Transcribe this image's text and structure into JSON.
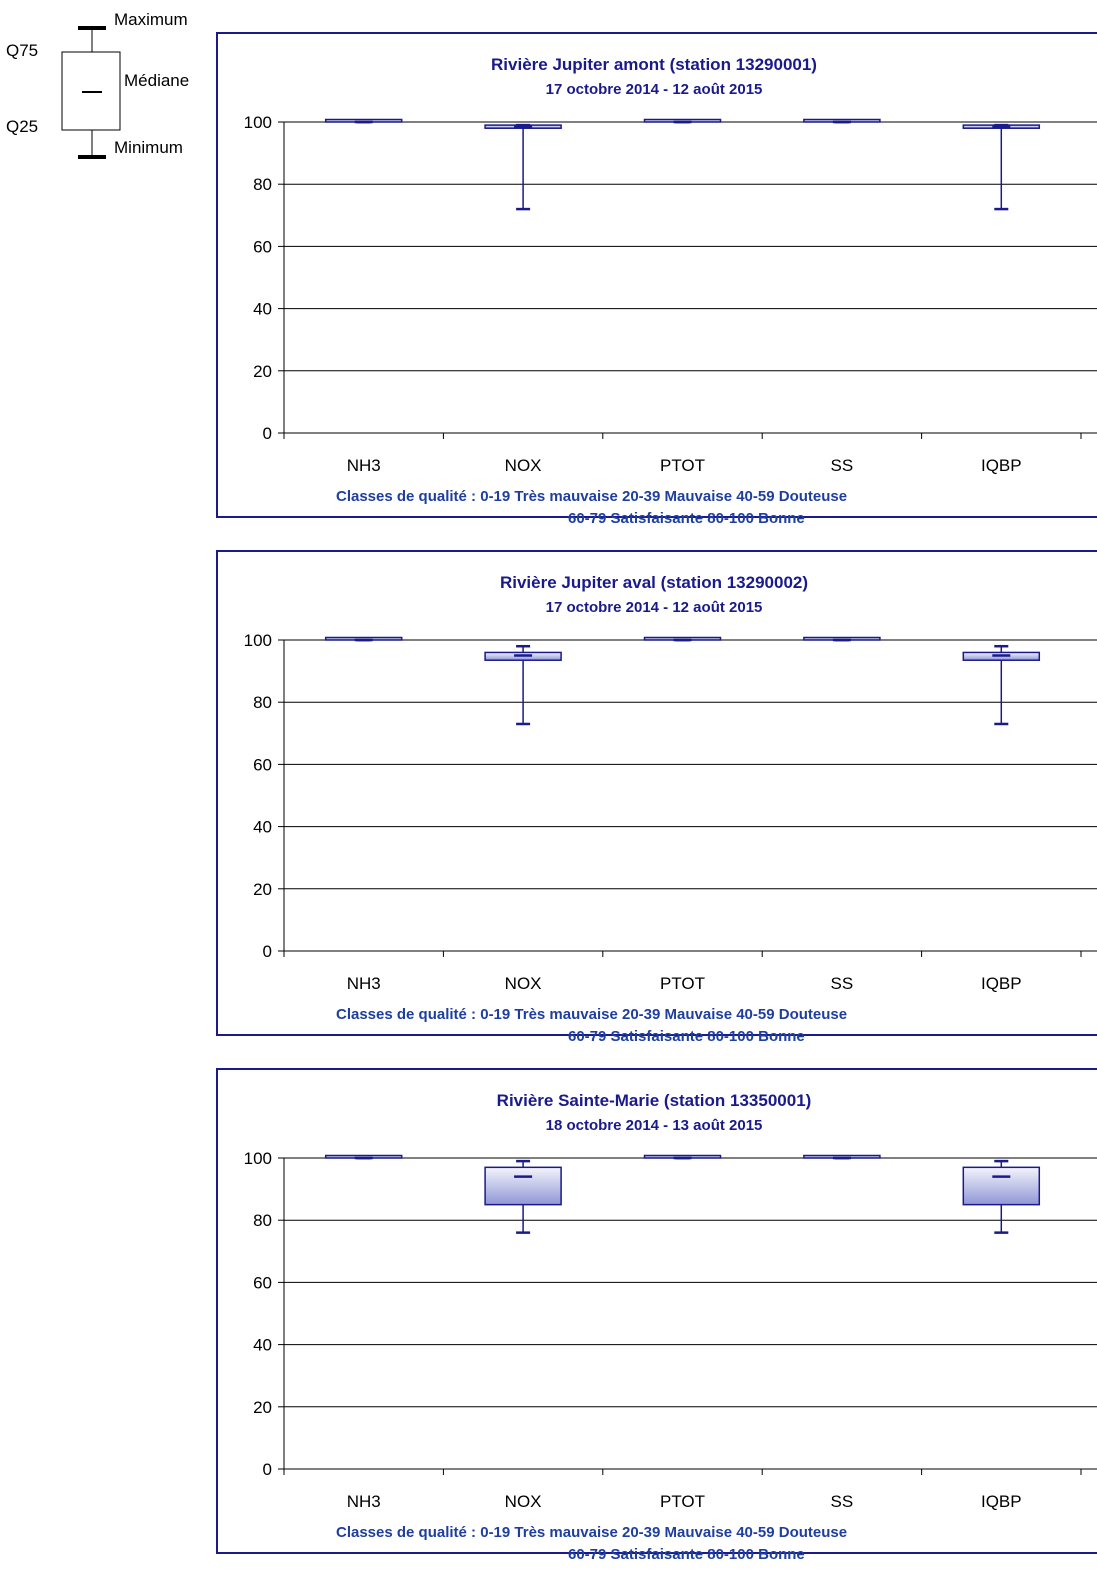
{
  "legend": {
    "maximum": "Maximum",
    "q75": "Q75",
    "median": "Médiane",
    "q25": "Q25",
    "minimum": "Minimum"
  },
  "colors": {
    "frame": "#1a1a8c",
    "title": "#1a1a8c",
    "quality_text": "#1f3fa0",
    "box_fill_top": "#f4f4fb",
    "box_fill_bottom": "#8f96d6",
    "whisker": "#1a1a8c"
  },
  "quality_classes": {
    "prefix": "Classes de qualité :",
    "c1": "0-19 Très mauvaise",
    "c2": "20-39 Mauvaise",
    "c3": "40-59 Douteuse",
    "c4": "60-79 Satisfaisante",
    "c5": "80-100 Bonne"
  },
  "chart_data": [
    {
      "type": "boxplot",
      "title": "Rivière Jupiter amont (station 13290001)",
      "subtitle": "17 octobre 2014 - 12 août 2015",
      "categories": [
        "NH3",
        "NOX",
        "PTOT",
        "SS",
        "IQBP"
      ],
      "ylim": [
        0,
        100
      ],
      "yticks": [
        0,
        20,
        40,
        60,
        80,
        100
      ],
      "grid": true,
      "boxes": [
        {
          "min": 100,
          "q25": 100,
          "median": 100,
          "q75": 100,
          "max": 100
        },
        {
          "min": 72,
          "q25": 98,
          "median": 98.5,
          "q75": 99,
          "max": 99
        },
        {
          "min": 100,
          "q25": 100,
          "median": 100,
          "q75": 100,
          "max": 100
        },
        {
          "min": 100,
          "q25": 100,
          "median": 100,
          "q75": 100,
          "max": 100
        },
        {
          "min": 72,
          "q25": 98,
          "median": 98.5,
          "q75": 99,
          "max": 99
        }
      ]
    },
    {
      "type": "boxplot",
      "title": "Rivière Jupiter aval (station 13290002)",
      "subtitle": "17 octobre 2014 - 12 août 2015",
      "categories": [
        "NH3",
        "NOX",
        "PTOT",
        "SS",
        "IQBP"
      ],
      "ylim": [
        0,
        100
      ],
      "yticks": [
        0,
        20,
        40,
        60,
        80,
        100
      ],
      "grid": true,
      "boxes": [
        {
          "min": 100,
          "q25": 100,
          "median": 100,
          "q75": 100,
          "max": 100
        },
        {
          "min": 73,
          "q25": 93.5,
          "median": 95,
          "q75": 96,
          "max": 98
        },
        {
          "min": 100,
          "q25": 100,
          "median": 100,
          "q75": 100,
          "max": 100
        },
        {
          "min": 100,
          "q25": 100,
          "median": 100,
          "q75": 100,
          "max": 100
        },
        {
          "min": 73,
          "q25": 93.5,
          "median": 95,
          "q75": 96,
          "max": 98
        }
      ]
    },
    {
      "type": "boxplot",
      "title": "Rivière Sainte-Marie (station 13350001)",
      "subtitle": "18 octobre 2014 - 13 août 2015",
      "categories": [
        "NH3",
        "NOX",
        "PTOT",
        "SS",
        "IQBP"
      ],
      "ylim": [
        0,
        100
      ],
      "yticks": [
        0,
        20,
        40,
        60,
        80,
        100
      ],
      "grid": true,
      "boxes": [
        {
          "min": 100,
          "q25": 100,
          "median": 100,
          "q75": 100,
          "max": 100
        },
        {
          "min": 76,
          "q25": 85,
          "median": 94,
          "q75": 97,
          "max": 99
        },
        {
          "min": 100,
          "q25": 100,
          "median": 100,
          "q75": 100,
          "max": 100
        },
        {
          "min": 100,
          "q25": 100,
          "median": 100,
          "q75": 100,
          "max": 100
        },
        {
          "min": 76,
          "q25": 85,
          "median": 94,
          "q75": 97,
          "max": 99
        }
      ]
    }
  ]
}
